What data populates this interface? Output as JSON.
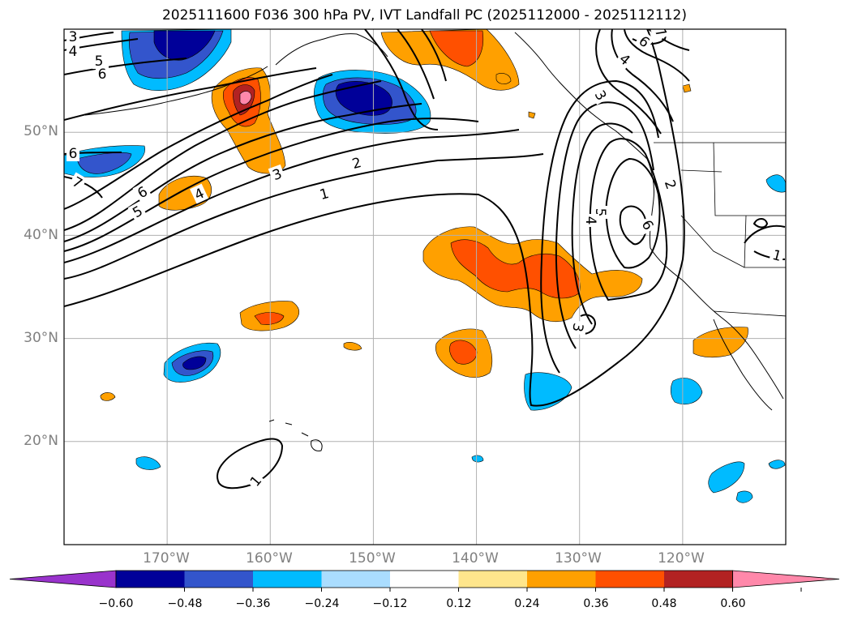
{
  "title": "2025111600 F036 300 hPa PV, IVT Landfall PC (2025112000 - 2025112112)",
  "map": {
    "projection": "lat-lon",
    "lon_range_deg": [
      -180,
      -110
    ],
    "lat_range_deg": [
      10,
      60
    ],
    "lat_gridlines_deg": [
      20,
      30,
      40,
      50
    ],
    "lon_gridlines_deg": [
      -170,
      -160,
      -150,
      -140,
      -130,
      -120
    ],
    "lat_labels": [
      "50°N",
      "40°N",
      "30°N",
      "20°N"
    ],
    "lon_labels": [
      "170°W",
      "160°W",
      "150°W",
      "140°W",
      "130°W",
      "120°W"
    ]
  },
  "contours": {
    "variable": "IVT landfall principal component",
    "labels": [
      "3",
      "4",
      "5",
      "6",
      "6",
      "7",
      "6",
      "5",
      "4",
      "3",
      "2",
      "1",
      "3",
      "6",
      "4",
      "5",
      "4",
      "6",
      "7",
      "3",
      "2",
      "1",
      "1"
    ]
  },
  "colorbar": {
    "variable": "300 hPa PV anomaly",
    "ticks": [
      "−0.60",
      "−0.48",
      "−0.36",
      "−0.24",
      "−0.12",
      "0.12",
      "0.24",
      "0.36",
      "0.48",
      "0.60"
    ],
    "colors": [
      "#9933cc",
      "#000099",
      "#3355cc",
      "#00bbff",
      "#aaddff",
      "#ffffff",
      "#ffe68c",
      "#ffa000",
      "#ff5000",
      "#b22222",
      "#ff88aa"
    ]
  }
}
